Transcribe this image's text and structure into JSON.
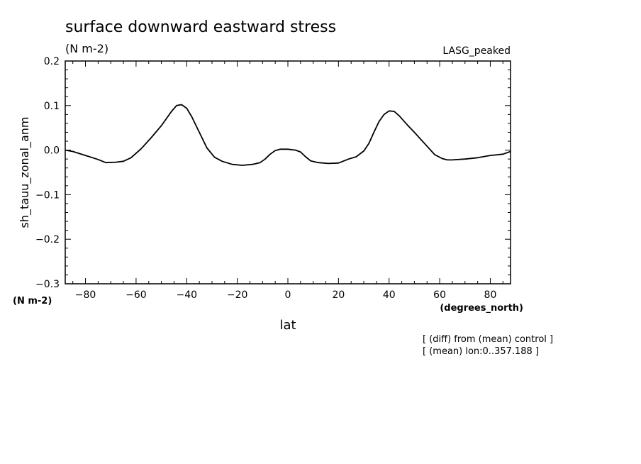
{
  "chart_data": {
    "type": "line",
    "title": "surface downward eastward stress",
    "subtitle": "(N m-2)",
    "dataset_label": "LASG_peaked",
    "xlabel": "lat",
    "xunits": "(degrees_north)",
    "ylabel": "sh_tauu_zonal_anm",
    "yunits": "(N m-2)",
    "xlim": [
      -88,
      88
    ],
    "ylim": [
      -0.3,
      0.2
    ],
    "xticks": [
      -80,
      -60,
      -40,
      -20,
      0,
      20,
      40,
      60,
      80
    ],
    "xtick_labels": [
      "−80",
      "−60",
      "−40",
      "−20",
      "0",
      "20",
      "40",
      "60",
      "80"
    ],
    "yticks": [
      -0.3,
      -0.2,
      -0.1,
      0.0,
      0.1,
      0.2
    ],
    "ytick_labels": [
      "−0.3",
      "−0.2",
      "−0.1",
      "0.0",
      "0.1",
      "0.2"
    ],
    "grid": false,
    "series": [
      {
        "color": "#000000",
        "x": [
          -88,
          -85,
          -80,
          -75,
          -72,
          -68,
          -65,
          -62,
          -58,
          -54,
          -50,
          -46,
          -44,
          -42,
          -40,
          -38,
          -35,
          -32,
          -29,
          -26,
          -22,
          -18,
          -14,
          -11,
          -9,
          -7,
          -5,
          -3,
          0,
          3,
          5,
          7,
          9,
          12,
          16,
          20,
          24,
          27,
          30,
          32,
          34,
          36,
          38,
          40,
          42,
          44,
          47,
          50,
          54,
          58,
          61,
          63,
          65,
          70,
          75,
          80,
          85,
          88
        ],
        "values": [
          0.0,
          -0.003,
          -0.012,
          -0.021,
          -0.028,
          -0.027,
          -0.025,
          -0.017,
          0.003,
          0.028,
          0.055,
          0.087,
          0.1,
          0.102,
          0.094,
          0.075,
          0.04,
          0.005,
          -0.016,
          -0.025,
          -0.032,
          -0.034,
          -0.032,
          -0.028,
          -0.02,
          -0.009,
          -0.001,
          0.002,
          0.002,
          0.0,
          -0.004,
          -0.015,
          -0.024,
          -0.028,
          -0.03,
          -0.029,
          -0.02,
          -0.015,
          -0.002,
          0.015,
          0.04,
          0.064,
          0.08,
          0.088,
          0.087,
          0.077,
          0.058,
          0.04,
          0.015,
          -0.01,
          -0.019,
          -0.022,
          -0.022,
          -0.02,
          -0.017,
          -0.012,
          -0.009,
          -0.003
        ]
      }
    ]
  },
  "footnotes": [
    "[ (diff) from (mean) control ]",
    "[ (mean) lon:0..357.188 ]"
  ]
}
